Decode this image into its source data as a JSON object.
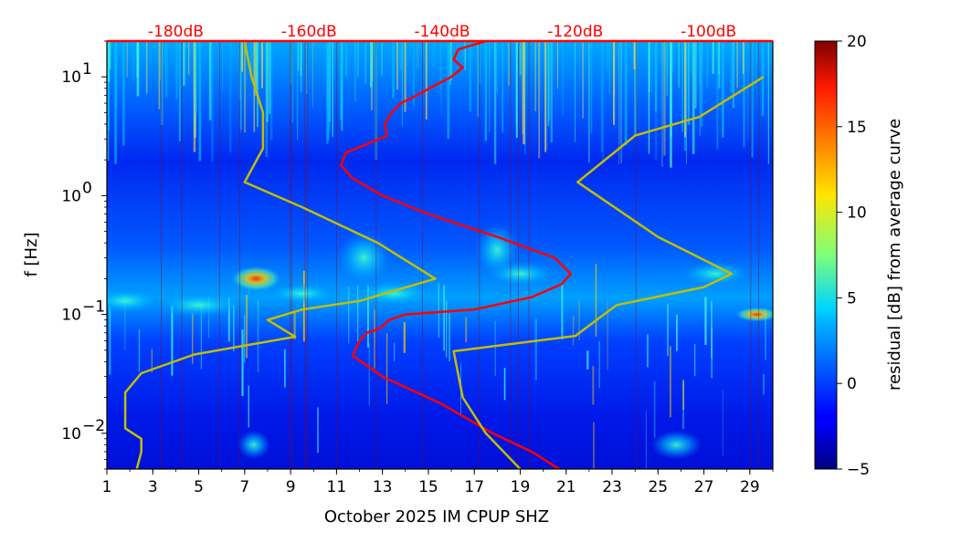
{
  "chart_data": {
    "type": "heatmap",
    "title": "",
    "xlabel": "October 2025 IM CPUP  SHZ",
    "ylabel": "f [Hz]",
    "x_ticks": [
      "1",
      "3",
      "5",
      "7",
      "9",
      "11",
      "13",
      "15",
      "17",
      "19",
      "21",
      "23",
      "25",
      "27",
      "29"
    ],
    "xlim": [
      1,
      30
    ],
    "ylim": [
      0.005,
      20
    ],
    "y_scale": "log",
    "y_ticks": [
      {
        "value": 10,
        "base": "10",
        "exp": "1"
      },
      {
        "value": 1,
        "base": "10",
        "exp": "0"
      },
      {
        "value": 0.1,
        "base": "10",
        "exp": "−1"
      },
      {
        "value": 0.01,
        "base": "10",
        "exp": "−2"
      }
    ],
    "top_axis": {
      "color": "#ff0000",
      "labels": [
        "-180dB",
        "-160dB",
        "-140dB",
        "-120dB",
        "-100dB"
      ],
      "positions": [
        4,
        9.8,
        15.6,
        21.4,
        27.2
      ]
    },
    "colorbar": {
      "label": "residual [dB] from average curve",
      "range": [
        -5,
        20
      ],
      "ticks": [
        "20",
        "15",
        "10",
        "5",
        "0",
        "−5"
      ],
      "tick_values": [
        20,
        15,
        10,
        5,
        0,
        -5
      ],
      "colormap": "jet"
    },
    "series": [
      {
        "color": "#ff0000",
        "points": [
          [
            20.7,
            0.005
          ],
          [
            19.5,
            0.007
          ],
          [
            17.8,
            0.01
          ],
          [
            15.5,
            0.018
          ],
          [
            13,
            0.03
          ],
          [
            11.7,
            0.045
          ],
          [
            12,
            0.06
          ],
          [
            12.3,
            0.07
          ],
          [
            12.8,
            0.075
          ],
          [
            13,
            0.08
          ],
          [
            13.3,
            0.09
          ],
          [
            14,
            0.1
          ],
          [
            17,
            0.11
          ],
          [
            19.5,
            0.14
          ],
          [
            20.8,
            0.18
          ],
          [
            21.2,
            0.22
          ],
          [
            20.5,
            0.3
          ],
          [
            18,
            0.45
          ],
          [
            15,
            0.7
          ],
          [
            13,
            1.0
          ],
          [
            11.7,
            1.4
          ],
          [
            11.2,
            1.8
          ],
          [
            11.4,
            2.3
          ],
          [
            12.5,
            2.8
          ],
          [
            13.2,
            3.2
          ],
          [
            13.1,
            4.0
          ],
          [
            13.4,
            5.0
          ],
          [
            13.8,
            6.0
          ],
          [
            14.5,
            7.0
          ],
          [
            15.3,
            8.5
          ],
          [
            16,
            10
          ],
          [
            16.5,
            12
          ],
          [
            16.1,
            14
          ],
          [
            16.3,
            17
          ],
          [
            17.5,
            20
          ]
        ]
      },
      {
        "color": "#bfbf00",
        "points": [
          [
            2.3,
            0.005
          ],
          [
            2.5,
            0.007
          ],
          [
            2.5,
            0.009
          ],
          [
            1.8,
            0.011
          ],
          [
            1.8,
            0.015
          ],
          [
            1.8,
            0.022
          ],
          [
            2.5,
            0.032
          ],
          [
            4.8,
            0.046
          ],
          [
            9.2,
            0.065
          ],
          [
            8,
            0.09
          ],
          [
            9.5,
            0.11
          ],
          [
            12,
            0.13
          ],
          [
            15.3,
            0.2
          ],
          [
            12.8,
            0.4
          ],
          [
            9.5,
            0.8
          ],
          [
            7,
            1.3
          ],
          [
            7.8,
            2.5
          ],
          [
            7.8,
            5
          ],
          [
            7.3,
            10
          ],
          [
            7,
            20
          ]
        ]
      },
      {
        "color": "#bfbf00",
        "points": [
          [
            19,
            0.005
          ],
          [
            17.5,
            0.01
          ],
          [
            16.5,
            0.02
          ],
          [
            16.1,
            0.049
          ],
          [
            21.4,
            0.066
          ],
          [
            23.2,
            0.12
          ],
          [
            27,
            0.17
          ],
          [
            28.2,
            0.22
          ],
          [
            25,
            0.45
          ],
          [
            21.5,
            1.3
          ],
          [
            24,
            3.2
          ],
          [
            26.8,
            4.6
          ],
          [
            29.6,
            10
          ]
        ]
      }
    ]
  }
}
